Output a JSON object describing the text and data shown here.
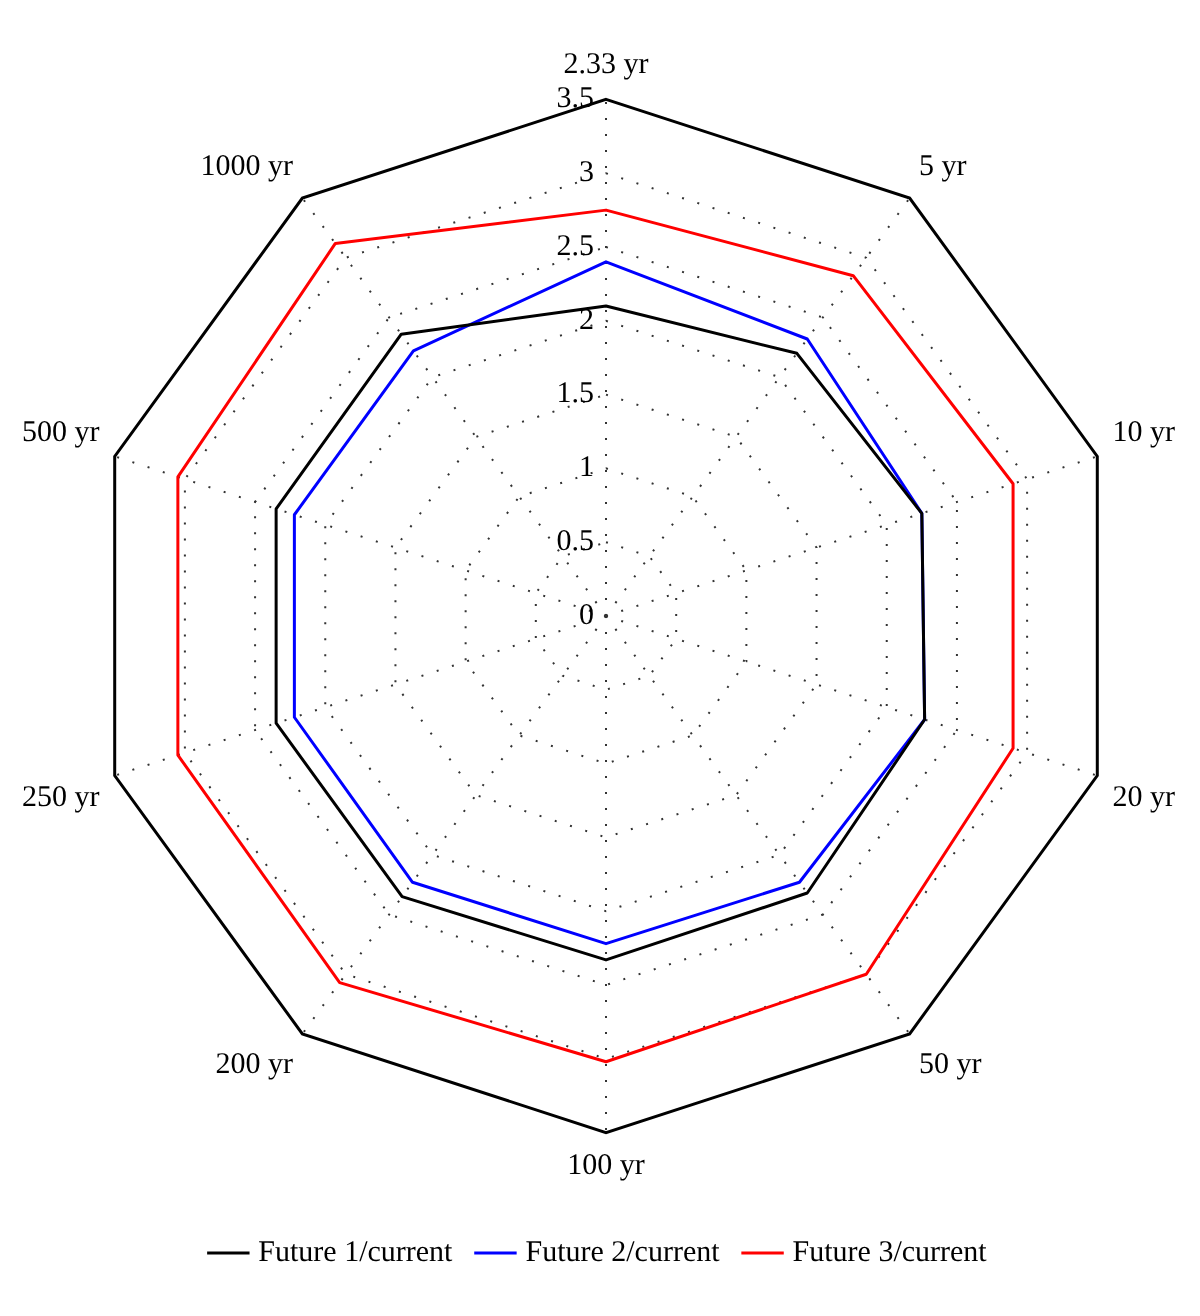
{
  "chart_data": {
    "type": "radar",
    "categories": [
      "2.33 yr",
      "5 yr",
      "10 yr",
      "20 yr",
      "50 yr",
      "100 yr",
      "200 yr",
      "250 yr",
      "500 yr",
      "1000 yr"
    ],
    "series": [
      {
        "name": "Future 1/current",
        "color": "#000000",
        "values": [
          2.1,
          2.2,
          2.25,
          2.27,
          2.32,
          2.33,
          2.35,
          2.35,
          2.35,
          2.36
        ]
      },
      {
        "name": "Future 2/current",
        "color": "#0000ff",
        "values": [
          2.4,
          2.32,
          2.25,
          2.27,
          2.23,
          2.22,
          2.23,
          2.22,
          2.22,
          2.22
        ]
      },
      {
        "name": "Future 3/current",
        "color": "#ff0000",
        "values": [
          2.75,
          2.85,
          2.9,
          2.9,
          3.0,
          3.02,
          3.07,
          3.05,
          3.05,
          3.12
        ]
      }
    ],
    "ylim": [
      0,
      3.5
    ],
    "yticks": [
      0,
      0.5,
      1,
      1.5,
      2,
      2.5,
      3,
      3.5
    ],
    "grid": true,
    "legend": "bottom",
    "marker": "none",
    "line_style": "solid"
  }
}
